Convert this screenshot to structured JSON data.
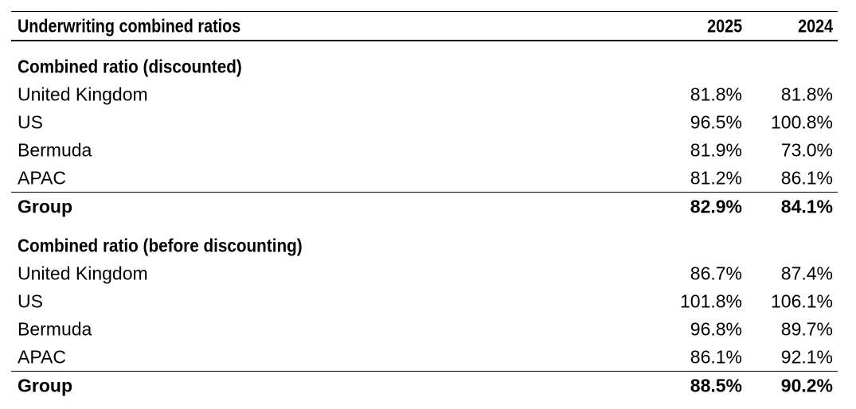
{
  "table": {
    "title": "Underwriting combined ratios",
    "columns": [
      "2025",
      "2024"
    ],
    "sections": [
      {
        "heading": "Combined ratio (discounted)",
        "rows": [
          {
            "label": "United Kingdom",
            "v2025": "81.8%",
            "v2024": "81.8%"
          },
          {
            "label": "US",
            "v2025": "96.5%",
            "v2024": "100.8%"
          },
          {
            "label": "Bermuda",
            "v2025": "81.9%",
            "v2024": "73.0%"
          },
          {
            "label": "APAC",
            "v2025": "81.2%",
            "v2024": "86.1%"
          }
        ],
        "total": {
          "label": "Group",
          "v2025": "82.9%",
          "v2024": "84.1%"
        }
      },
      {
        "heading": "Combined ratio (before discounting)",
        "rows": [
          {
            "label": "United Kingdom",
            "v2025": "86.7%",
            "v2024": "87.4%"
          },
          {
            "label": "US",
            "v2025": "101.8%",
            "v2024": "106.1%"
          },
          {
            "label": "Bermuda",
            "v2025": "96.8%",
            "v2024": "89.7%"
          },
          {
            "label": "APAC",
            "v2025": "86.1%",
            "v2024": "92.1%"
          }
        ],
        "total": {
          "label": "Group",
          "v2025": "88.5%",
          "v2024": "90.2%"
        }
      }
    ]
  }
}
